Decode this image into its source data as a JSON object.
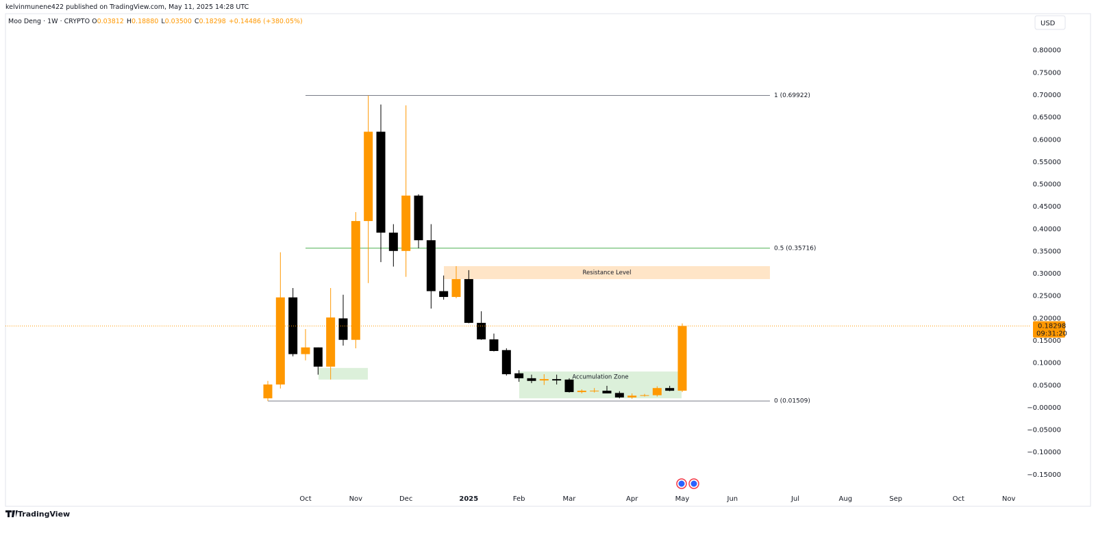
{
  "header": {
    "publisher": "kelvinmunene422 published on TradingView.com, May 11, 2025 14:28 UTC"
  },
  "footer": {
    "brand": "TradingView"
  },
  "chart_data": {
    "type": "candlestick",
    "symbol": "Moo Deng · 1W · CRYPTO",
    "ohlc_legend": [
      {
        "key": "O",
        "label": "0.03812"
      },
      {
        "key": "H",
        "label": "0.18880"
      },
      {
        "key": "L",
        "label": "0.03500"
      },
      {
        "key": "C",
        "label": "0.18298"
      }
    ],
    "change": "+0.14486 (+380.05%)",
    "currency": "USD",
    "countdown": "09:31:20",
    "up_color": "#ff9800",
    "down_color": "#000000",
    "grid": false,
    "categories": [
      null,
      null,
      null,
      "Oct",
      null,
      null,
      null,
      "Nov",
      null,
      null,
      null,
      "Dec",
      null,
      null,
      null,
      null,
      "2025",
      null,
      null,
      null,
      "Feb",
      null,
      null,
      null,
      "Mar",
      null,
      null,
      null,
      null,
      "Apr",
      null,
      null,
      null,
      "May",
      null,
      null,
      null,
      "Jun",
      null,
      null,
      null,
      null,
      "Jul",
      null,
      null,
      null,
      "Aug",
      null,
      null,
      null,
      "Sep",
      null,
      null,
      null,
      null,
      "Oct",
      null,
      null,
      null,
      "Nov",
      null
    ],
    "open": [
      0.021,
      0.052,
      0.247,
      0.12,
      0.135,
      0.092,
      0.2,
      0.152,
      0.418,
      0.618,
      0.392,
      0.351,
      0.475,
      0.375,
      0.261,
      0.248,
      0.288,
      0.19,
      0.153,
      0.129,
      0.077,
      0.066,
      0.061,
      0.064,
      0.063,
      0.035,
      0.037,
      0.038,
      0.033,
      0.023,
      0.027,
      0.028,
      0.044,
      0.03812,
      null,
      null,
      null,
      null,
      null,
      null,
      null,
      null,
      null,
      null,
      null,
      null,
      null,
      null,
      null,
      null,
      null,
      null,
      null,
      null,
      null,
      null,
      null,
      null,
      null,
      null,
      null
    ],
    "high": [
      0.06,
      0.348,
      0.268,
      0.176,
      0.135,
      0.268,
      0.253,
      0.438,
      0.699,
      0.679,
      0.411,
      0.677,
      0.478,
      0.411,
      0.296,
      0.317,
      0.308,
      0.216,
      0.166,
      0.133,
      0.084,
      0.074,
      0.075,
      0.074,
      0.066,
      0.041,
      0.044,
      0.049,
      0.037,
      0.032,
      0.031,
      0.048,
      0.049,
      0.1888,
      null,
      null,
      null,
      null,
      null,
      null,
      null,
      null,
      null,
      null,
      null,
      null,
      null,
      null,
      null,
      null,
      null,
      null,
      null,
      null,
      null,
      null,
      null,
      null,
      null,
      null,
      null
    ],
    "low": [
      0.015,
      0.043,
      0.115,
      0.106,
      0.074,
      0.063,
      0.139,
      0.133,
      0.279,
      0.326,
      0.316,
      0.293,
      0.357,
      0.222,
      0.242,
      0.245,
      0.189,
      0.152,
      0.126,
      0.072,
      0.058,
      0.055,
      0.051,
      0.052,
      0.034,
      0.032,
      0.034,
      0.032,
      0.021,
      0.02,
      0.025,
      0.025,
      0.037,
      0.035,
      null,
      null,
      null,
      null,
      null,
      null,
      null,
      null,
      null,
      null,
      null,
      null,
      null,
      null,
      null,
      null,
      null,
      null,
      null,
      null,
      null,
      null,
      null,
      null,
      null,
      null,
      null
    ],
    "close": [
      0.052,
      0.247,
      0.12,
      0.135,
      0.092,
      0.202,
      0.152,
      0.418,
      0.618,
      0.392,
      0.351,
      0.475,
      0.375,
      0.261,
      0.248,
      0.288,
      0.19,
      0.153,
      0.127,
      0.075,
      0.066,
      0.06,
      0.064,
      0.061,
      0.035,
      0.038,
      0.038,
      0.032,
      0.023,
      0.027,
      0.028,
      0.044,
      0.038,
      0.18298,
      null,
      null,
      null,
      null,
      null,
      null,
      null,
      null,
      null,
      null,
      null,
      null,
      null,
      null,
      null,
      null,
      null,
      null,
      null,
      null,
      null,
      null,
      null,
      null,
      null,
      null,
      null
    ],
    "ylim": [
      -0.187,
      0.844
    ],
    "yticks": [
      {
        "value": 0.8,
        "label": "0.80000"
      },
      {
        "value": 0.75,
        "label": "0.75000"
      },
      {
        "value": 0.7,
        "label": "0.70000"
      },
      {
        "value": 0.65,
        "label": "0.65000"
      },
      {
        "value": 0.6,
        "label": "0.60000"
      },
      {
        "value": 0.55,
        "label": "0.55000"
      },
      {
        "value": 0.5,
        "label": "0.50000"
      },
      {
        "value": 0.45,
        "label": "0.45000"
      },
      {
        "value": 0.4,
        "label": "0.40000"
      },
      {
        "value": 0.35,
        "label": "0.35000"
      },
      {
        "value": 0.3,
        "label": "0.30000"
      },
      {
        "value": 0.25,
        "label": "0.25000"
      },
      {
        "value": 0.2,
        "label": "0.20000"
      },
      {
        "value": 0.15,
        "label": "0.15000"
      },
      {
        "value": 0.1,
        "label": "0.10000"
      },
      {
        "value": 0.05,
        "label": "0.05000"
      },
      {
        "value": 0,
        "label": "−0.00000"
      },
      {
        "value": -0.05,
        "label": "−0.05000"
      },
      {
        "value": -0.1,
        "label": "−0.10000"
      },
      {
        "value": -0.15,
        "label": "−0.15000"
      }
    ],
    "levels": [
      {
        "value": 0.69922,
        "label": "1 (0.69922)",
        "color": "#787b86"
      },
      {
        "value": 0.35716,
        "label": "0.5 (0.35716)",
        "color": "#4caf50"
      },
      {
        "value": 0.01509,
        "label": "0 (0.01509)",
        "color": "#787b86"
      }
    ],
    "zones": [
      {
        "label": "Resistance Level",
        "bottom": 0.288,
        "top": 0.317,
        "color": "#ffe5c7"
      },
      {
        "label": "Accumulation Zone",
        "bottom": 0.021,
        "top": 0.081,
        "color": "#dcf0da"
      },
      {
        "bottom": 0.063,
        "top": 0.089,
        "color": "#dcf0da"
      }
    ]
  }
}
